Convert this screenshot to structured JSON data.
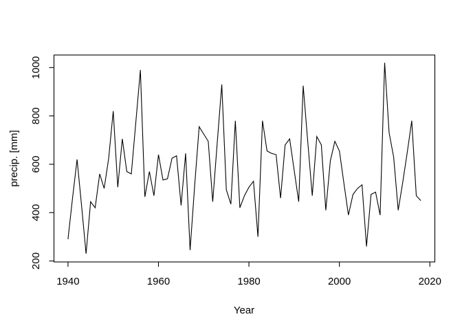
{
  "chart_data": {
    "type": "line",
    "title": "",
    "xlabel": "Year",
    "ylabel": "precip. [mm]",
    "legend": null,
    "grid": false,
    "background_color": "#ffffff",
    "line_color": "#000000",
    "axis_color": "#000000",
    "xlim": [
      1936.9,
      2021.1
    ],
    "ylim": [
      196,
      1052
    ],
    "x_ticks": [
      1940,
      1960,
      1980,
      2000,
      2020
    ],
    "y_ticks": [
      200,
      400,
      600,
      800,
      1000
    ],
    "x": [
      1940,
      1941,
      1942,
      1943,
      1944,
      1945,
      1946,
      1947,
      1948,
      1949,
      1950,
      1951,
      1952,
      1953,
      1954,
      1955,
      1956,
      1957,
      1958,
      1959,
      1960,
      1961,
      1962,
      1963,
      1964,
      1965,
      1966,
      1967,
      1968,
      1969,
      1970,
      1971,
      1972,
      1973,
      1974,
      1975,
      1976,
      1977,
      1978,
      1979,
      1980,
      1981,
      1982,
      1983,
      1984,
      1985,
      1986,
      1987,
      1988,
      1989,
      1990,
      1991,
      1992,
      1993,
      1994,
      1995,
      1996,
      1997,
      1998,
      1999,
      2000,
      2001,
      2002,
      2003,
      2004,
      2005,
      2006,
      2007,
      2008,
      2009,
      2010,
      2011,
      2012,
      2013,
      2014,
      2015,
      2016,
      2017,
      2018
    ],
    "values": [
      290,
      460,
      620,
      430,
      230,
      445,
      420,
      560,
      500,
      625,
      820,
      505,
      705,
      570,
      560,
      775,
      990,
      465,
      570,
      470,
      640,
      535,
      540,
      625,
      635,
      430,
      645,
      245,
      510,
      755,
      725,
      695,
      445,
      690,
      930,
      495,
      435,
      780,
      420,
      470,
      505,
      530,
      300,
      780,
      655,
      645,
      640,
      460,
      680,
      705,
      575,
      445,
      925,
      695,
      470,
      715,
      680,
      410,
      615,
      695,
      655,
      520,
      390,
      475,
      500,
      515,
      260,
      475,
      485,
      390,
      1020,
      730,
      630,
      410,
      525,
      650,
      780,
      470,
      450
    ]
  }
}
